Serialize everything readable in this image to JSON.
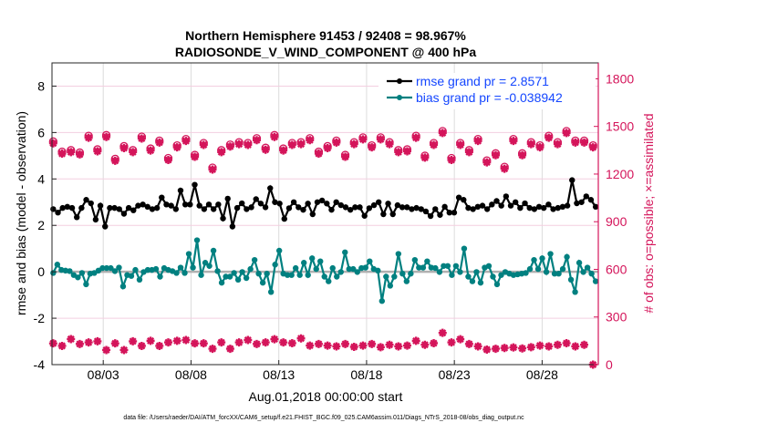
{
  "chart_data": {
    "type": "line",
    "title": [
      "Northern Hemisphere 91453 / 92408 = 98.967%",
      "RADIOSONDE_V_WIND_COMPONENT @ 400 hPa"
    ],
    "xlabel": "Aug.01,2018 00:00:00 start",
    "ylabel": "rmse and bias (model - observation)",
    "y2label": "# of obs: o=possible; ×=assimilated",
    "footnote": "data file: /Users/raeder/DAI/ATM_forcXX/CAM6_setup/f.e21.FHIST_BGC.f09_025.CAM6assim.011/Diags_NTrS_2018-08/obs_diag_output.nc",
    "xlim_days": [
      -0.92,
      30.2
    ],
    "x_ticks": [
      {
        "day": 2,
        "label": "08/03"
      },
      {
        "day": 7,
        "label": "08/08"
      },
      {
        "day": 12,
        "label": "08/13"
      },
      {
        "day": 17,
        "label": "08/18"
      },
      {
        "day": 22,
        "label": "08/23"
      },
      {
        "day": 27,
        "label": "08/28"
      }
    ],
    "ylim": [
      -4,
      9
    ],
    "y_ticks": [
      "-4",
      "-2",
      "0",
      "2",
      "4",
      "6",
      "8"
    ],
    "y2lim": [
      0,
      1900
    ],
    "y2_ticks": [
      "0",
      "300",
      "600",
      "900",
      "1200",
      "1500",
      "1800"
    ],
    "grid": true,
    "legend_position": "top-right",
    "colors": {
      "rmse": "#000000",
      "bias": "#008080",
      "obs": "#d4145a",
      "legend_text": "#1446ff",
      "zero_line": "#b0b0b0"
    },
    "series": [
      {
        "name": "rmse grand pr = 2.8571",
        "key": "rmse",
        "x_start": -0.85,
        "x_end": 30.05,
        "values": [
          2.7,
          2.55,
          2.75,
          2.8,
          2.75,
          2.35,
          2.75,
          3.1,
          2.95,
          2.25,
          2.85,
          1.95,
          2.75,
          2.75,
          2.7,
          2.5,
          2.75,
          2.65,
          2.85,
          2.9,
          2.8,
          2.7,
          2.75,
          3.2,
          2.9,
          2.85,
          2.7,
          3.5,
          2.9,
          2.9,
          3.75,
          2.85,
          2.7,
          2.9,
          2.7,
          2.9,
          2.3,
          3.15,
          1.95,
          2.75,
          2.95,
          2.7,
          2.78,
          3.13,
          2.94,
          2.78,
          3.6,
          3.0,
          2.94,
          2.28,
          2.74,
          3.0,
          2.78,
          2.67,
          2.94,
          2.48,
          3.0,
          3.07,
          2.94,
          2.67,
          3.0,
          2.87,
          2.78,
          2.67,
          2.78,
          2.78,
          2.41,
          2.74,
          2.87,
          3.0,
          2.48,
          2.94,
          2.48,
          2.87,
          2.78,
          2.78,
          2.7,
          2.75,
          2.7,
          2.6,
          2.4,
          2.7,
          2.45,
          2.8,
          2.55,
          2.55,
          3.2,
          3.1,
          2.75,
          2.7,
          2.8,
          2.85,
          2.7,
          2.9,
          3.05,
          2.85,
          3.25,
          2.85,
          3.0,
          2.75,
          2.95,
          2.75,
          2.7,
          2.8,
          2.75,
          2.9,
          2.7,
          2.75,
          2.8,
          2.85,
          3.95,
          2.95,
          3.0,
          3.25,
          3.1,
          2.8
        ]
      },
      {
        "name": "bias grand pr = -0.038942",
        "key": "bias",
        "x_start": -0.85,
        "x_end": 30.05,
        "values": [
          -0.05,
          0.31,
          0.08,
          0.05,
          0.03,
          -0.14,
          -0.24,
          -0.05,
          -0.54,
          -0.08,
          -0.05,
          0.05,
          0.16,
          0.16,
          0.16,
          0.03,
          0.18,
          -0.63,
          -0.14,
          -0.18,
          0.08,
          -0.34,
          -0.01,
          0.08,
          0.08,
          0.12,
          -0.21,
          0.16,
          0.08,
          0.03,
          -0.05,
          0.18,
          -0.05,
          0.77,
          0.18,
          1.36,
          -0.14,
          0.39,
          0.25,
          0.91,
          0.03,
          -0.47,
          -0.21,
          -0.21,
          -0.05,
          -0.34,
          -0.01,
          -0.27,
          0.12,
          0.51,
          -0.08,
          -0.47,
          -0.08,
          -0.87,
          0.31,
          0.91,
          -0.08,
          -0.14,
          -0.14,
          0.16,
          -0.14,
          0.39,
          -0.14,
          0.58,
          0.12,
          0.45,
          -0.21,
          -0.41,
          0.16,
          -0.21,
          -0.01,
          0.84,
          0.12,
          0.12,
          -0.01,
          0.16,
          0.18,
          0.45,
          0.12,
          0.05,
          -1.26,
          -0.21,
          -0.6,
          -0.21,
          0.77,
          -0.08,
          -0.41,
          -0.08,
          0.51,
          0.18,
          0.18,
          0.45,
          0.18,
          0.16,
          -0.01,
          0.25,
          0.25,
          -0.14,
          0.25,
          -0.01,
          1.0,
          -0.21,
          -0.41,
          -0.01,
          -0.47,
          0.18,
          0.25,
          -0.21,
          -0.54,
          -0.14,
          -0.01,
          -0.08,
          -0.14,
          -0.11,
          -0.08,
          -0.05,
          0.12,
          0.51,
          0.12,
          0.58,
          -0.01,
          0.77,
          -0.08,
          -0.08,
          0.12,
          0.64,
          -0.34,
          -0.87,
          0.39,
          -0.01,
          0.18,
          -0.08,
          -0.41
        ]
      },
      {
        "name": "possible",
        "key": "possible",
        "axis": "right",
        "x_start": -0.85,
        "x_end": 29.9,
        "values": [
          1405,
          1340,
          1350,
          1335,
          1440,
          1355,
          1445,
          1295,
          1375,
          1350,
          1435,
          1360,
          1410,
          1300,
          1380,
          1420,
          1320,
          1395,
          1240,
          1350,
          1385,
          1400,
          1395,
          1425,
          1365,
          1445,
          1360,
          1395,
          1400,
          1425,
          1340,
          1375,
          1410,
          1320,
          1400,
          1430,
          1380,
          1430,
          1400,
          1350,
          1355,
          1440,
          1315,
          1395,
          1470,
          1300,
          1395,
          1350,
          1420,
          1285,
          1330,
          1245,
          1420,
          1330,
          1400,
          1380,
          1440,
          1400,
          1470,
          1410,
          1410,
          1380
        ]
      },
      {
        "name": "assimilated",
        "key": "assimilated",
        "axis": "right",
        "x_start": -0.85,
        "x_end": 29.9,
        "values": [
          134,
          118,
          161,
          130,
          140,
          147,
          92,
          134,
          92,
          147,
          118,
          150,
          118,
          140,
          150,
          155,
          134,
          134,
          100,
          140,
          100,
          140,
          155,
          130,
          140,
          160,
          140,
          135,
          165,
          120,
          130,
          120,
          115,
          130,
          112,
          120,
          130,
          110,
          125,
          115,
          120,
          150,
          125,
          135,
          200,
          140,
          160,
          130,
          115,
          95,
          100,
          105,
          108,
          102,
          110,
          120,
          115,
          125,
          135,
          115,
          125,
          0
        ]
      }
    ]
  }
}
